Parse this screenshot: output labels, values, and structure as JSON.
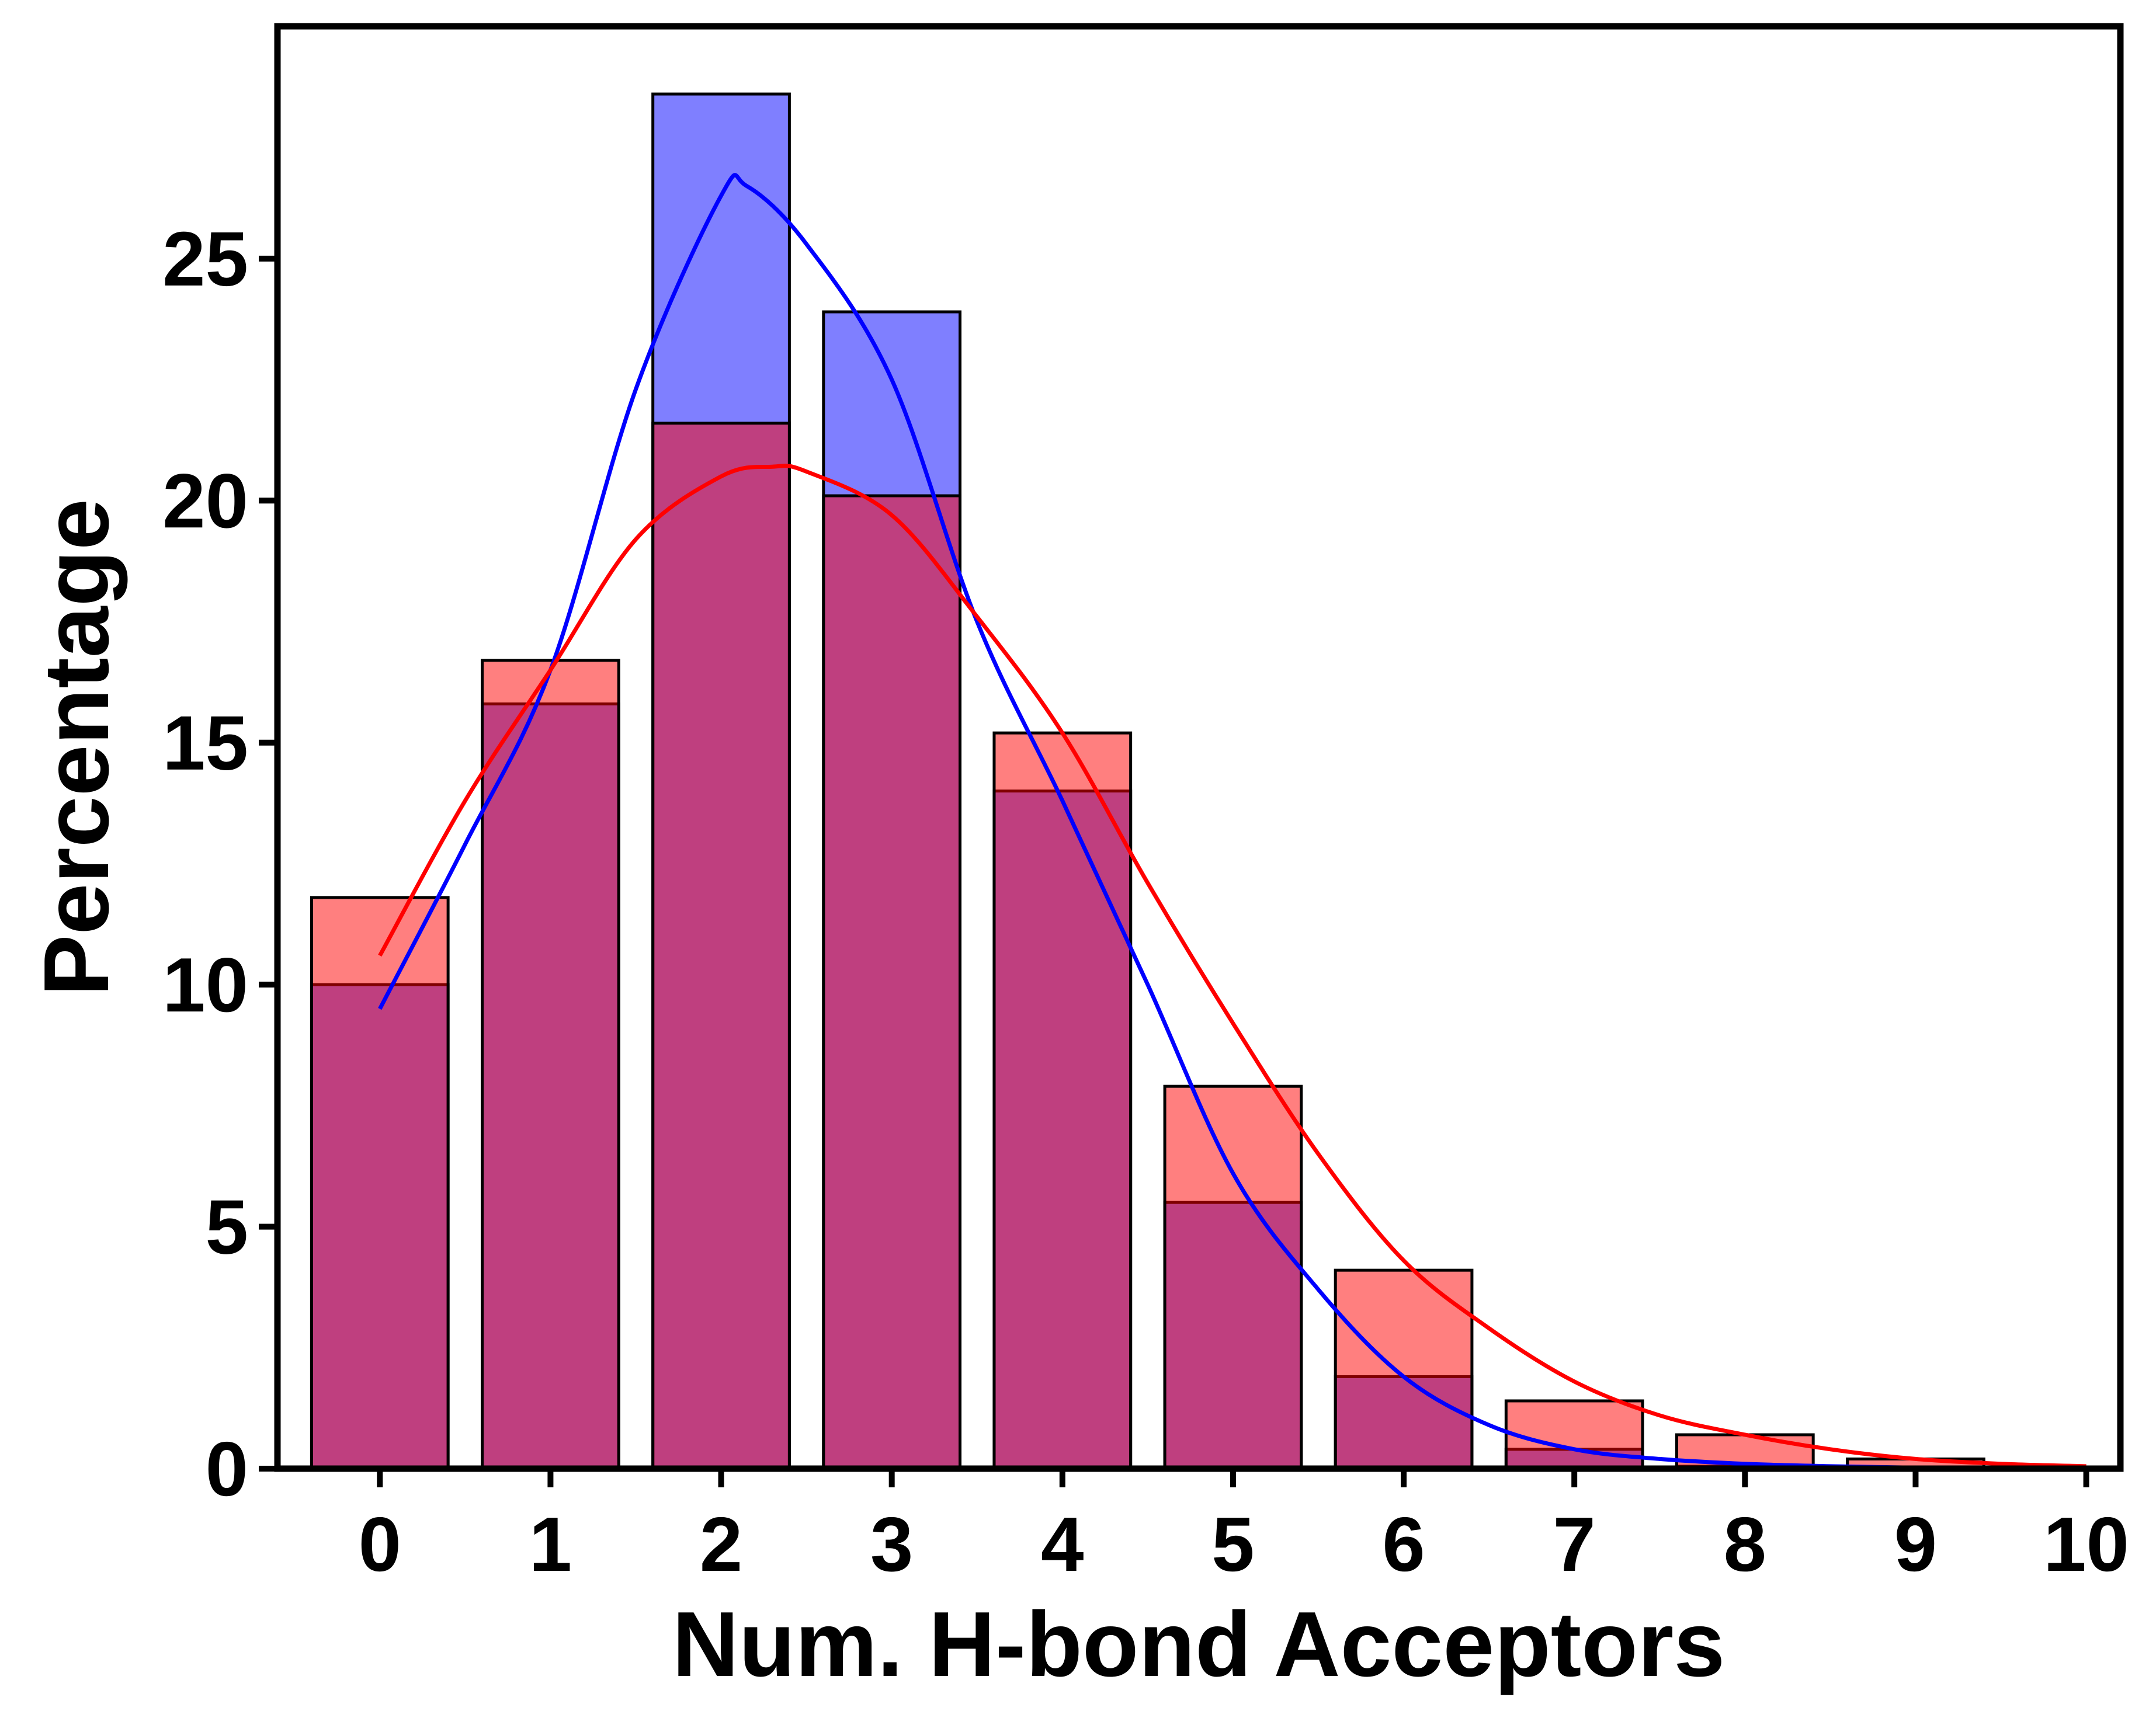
{
  "chart_data": {
    "type": "bar",
    "xlabel": "Num. H-bond Acceptors",
    "ylabel": "Percentage",
    "xlim": [
      -0.6,
      10.2
    ],
    "ylim": [
      0,
      29.8
    ],
    "x_ticks": [
      "0",
      "1",
      "2",
      "3",
      "4",
      "5",
      "6",
      "7",
      "8",
      "9",
      "10"
    ],
    "y_ticks": [
      "0",
      "5",
      "10",
      "15",
      "20",
      "25"
    ],
    "categories": [
      0,
      1,
      2,
      3,
      4,
      5,
      6,
      7,
      8,
      9
    ],
    "grid": false,
    "legend": "none",
    "series": [
      {
        "color": "#0000ff",
        "bar_fill": "rgba(0,0,255,0.5)",
        "values": [
          10.0,
          15.8,
          28.4,
          23.9,
          14.0,
          5.5,
          1.9,
          0.4,
          0.05,
          0.0
        ],
        "kde": {
          "x": [
            0,
            0.5,
            1,
            1.5,
            2,
            2.15,
            2.5,
            3,
            3.5,
            4,
            4.5,
            5,
            5.5,
            6,
            6.5,
            7,
            7.5,
            8,
            8.5,
            9,
            9.5,
            10
          ],
          "y": [
            9.5,
            12.9,
            16.5,
            22.3,
            26.3,
            26.5,
            25.3,
            22.5,
            17.5,
            13.8,
            10.0,
            6.1,
            3.7,
            1.9,
            0.9,
            0.4,
            0.2,
            0.1,
            0.05,
            0.02,
            0.01,
            0.0
          ]
        }
      },
      {
        "color": "#ff0000",
        "bar_fill": "rgba(255,0,0,0.5)",
        "values": [
          11.8,
          16.7,
          21.6,
          20.1,
          15.2,
          7.9,
          4.1,
          1.4,
          0.7,
          0.2
        ],
        "kde": {
          "x": [
            0,
            0.5,
            1,
            1.5,
            2,
            2.3,
            2.5,
            3,
            3.5,
            4,
            4.5,
            5,
            5.5,
            6,
            6.5,
            7,
            7.5,
            8,
            8.5,
            9,
            9.5,
            10
          ],
          "y": [
            10.6,
            13.8,
            16.5,
            19.2,
            20.5,
            20.7,
            20.6,
            19.7,
            17.6,
            15.2,
            12.1,
            9.2,
            6.5,
            4.3,
            2.9,
            1.8,
            1.1,
            0.7,
            0.4,
            0.2,
            0.1,
            0.05
          ]
        }
      }
    ]
  }
}
